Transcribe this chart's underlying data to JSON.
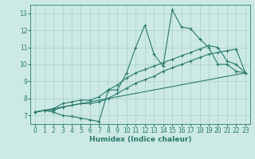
{
  "xlabel": "Humidex (Indice chaleur)",
  "background_color": "#cce9e5",
  "grid_color": "#aacfcb",
  "line_color": "#2a7a6a",
  "xlim": [
    0,
    23
  ],
  "ylim": [
    6.5,
    13.5
  ],
  "xticks": [
    0,
    1,
    2,
    3,
    4,
    5,
    6,
    7,
    8,
    9,
    10,
    11,
    12,
    13,
    14,
    15,
    16,
    17,
    18,
    19,
    20,
    21,
    22,
    23
  ],
  "yticks": [
    7,
    8,
    9,
    10,
    11,
    12,
    13
  ],
  "tick_fontsize": 5.5,
  "xlabel_fontsize": 6.5,
  "lines": [
    {
      "x": [
        0,
        1,
        2,
        3,
        4,
        5,
        6,
        7,
        8,
        9,
        10,
        11,
        12,
        13,
        14,
        15,
        16,
        17,
        18,
        19,
        20,
        21,
        22,
        23
      ],
      "y": [
        7.2,
        7.3,
        7.2,
        7.0,
        6.95,
        6.85,
        6.75,
        6.65,
        8.5,
        8.5,
        9.5,
        11.0,
        12.3,
        10.6,
        9.9,
        13.2,
        12.2,
        12.1,
        11.5,
        11.0,
        10.0,
        10.0,
        9.6,
        9.5
      ],
      "marker": true
    },
    {
      "x": [
        0,
        1,
        2,
        3,
        4,
        5,
        6,
        7,
        8,
        9,
        10,
        11,
        12,
        13,
        14,
        15,
        16,
        17,
        18,
        19,
        20,
        21,
        22,
        23
      ],
      "y": [
        7.2,
        7.3,
        7.4,
        7.7,
        7.8,
        7.9,
        7.9,
        8.1,
        8.5,
        8.8,
        9.2,
        9.5,
        9.7,
        9.9,
        10.1,
        10.3,
        10.5,
        10.7,
        10.9,
        11.1,
        11.0,
        10.2,
        10.0,
        9.5
      ],
      "marker": true
    },
    {
      "x": [
        0,
        1,
        2,
        3,
        4,
        5,
        6,
        7,
        8,
        9,
        10,
        11,
        12,
        13,
        14,
        15,
        16,
        17,
        18,
        19,
        20,
        21,
        22,
        23
      ],
      "y": [
        7.2,
        7.3,
        7.3,
        7.5,
        7.6,
        7.7,
        7.7,
        7.8,
        8.0,
        8.3,
        8.6,
        8.9,
        9.1,
        9.3,
        9.6,
        9.8,
        10.0,
        10.2,
        10.4,
        10.6,
        10.7,
        10.8,
        10.9,
        9.5
      ],
      "marker": true
    },
    {
      "x": [
        0,
        23
      ],
      "y": [
        7.2,
        9.5
      ],
      "marker": false
    }
  ]
}
